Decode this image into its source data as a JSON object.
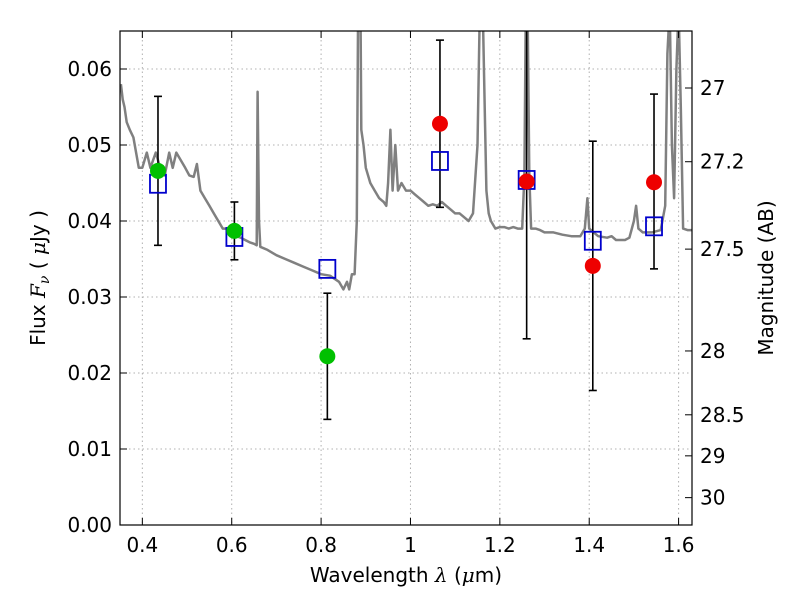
{
  "chart_data": {
    "type": "scatter",
    "title": "",
    "xlabel_text": "Wavelength",
    "xlabel_sym": "λ",
    "xlabel_unit_open": "(",
    "xlabel_unit_mu": "μ",
    "xlabel_unit_rest": "m)",
    "ylabel_text": "Flux",
    "ylabel_sym": "F",
    "ylabel_sub": "ν",
    "ylabel_unit_open": "(",
    "ylabel_unit_mu": "μ",
    "ylabel_unit_rest": "Jy )",
    "y2label": "Magnitude (AB)",
    "xlim": [
      0.35,
      1.63
    ],
    "ylim": [
      0.0,
      0.065
    ],
    "grid": true,
    "x_ticks": [
      {
        "value": 0.4,
        "label": "0.4"
      },
      {
        "value": 0.6,
        "label": "0.6"
      },
      {
        "value": 0.8,
        "label": "0.8"
      },
      {
        "value": 1.0,
        "label": "1"
      },
      {
        "value": 1.2,
        "label": "1.2"
      },
      {
        "value": 1.4,
        "label": "1.4"
      },
      {
        "value": 1.6,
        "label": "1.6"
      }
    ],
    "y_ticks": [
      {
        "value": 0.0,
        "label": "0.00"
      },
      {
        "value": 0.01,
        "label": "0.01"
      },
      {
        "value": 0.02,
        "label": "0.02"
      },
      {
        "value": 0.03,
        "label": "0.03"
      },
      {
        "value": 0.04,
        "label": "0.04"
      },
      {
        "value": 0.05,
        "label": "0.05"
      },
      {
        "value": 0.06,
        "label": "0.06"
      }
    ],
    "y2_ticks": [
      {
        "flux": 0.0575,
        "label": "27"
      },
      {
        "flux": 0.0478,
        "label": "27.2"
      },
      {
        "flux": 0.0363,
        "label": "27.5"
      },
      {
        "flux": 0.0229,
        "label": "28"
      },
      {
        "flux": 0.0145,
        "label": "28.5"
      },
      {
        "flux": 0.0091,
        "label": "29"
      },
      {
        "flux": 0.0036,
        "label": "30"
      }
    ],
    "colors": {
      "spectrum": "#808080",
      "green": "#00c000",
      "red": "#ee0000",
      "model": "#0000cc",
      "errorbar": "#000000",
      "grid": "#b0b0b0"
    },
    "spectrum": [
      [
        0.352,
        0.058
      ],
      [
        0.356,
        0.056
      ],
      [
        0.36,
        0.055
      ],
      [
        0.365,
        0.053
      ],
      [
        0.372,
        0.052
      ],
      [
        0.38,
        0.051
      ],
      [
        0.386,
        0.049
      ],
      [
        0.392,
        0.047
      ],
      [
        0.4,
        0.047
      ],
      [
        0.41,
        0.049
      ],
      [
        0.418,
        0.047
      ],
      [
        0.43,
        0.049
      ],
      [
        0.44,
        0.047
      ],
      [
        0.45,
        0.046
      ],
      [
        0.46,
        0.049
      ],
      [
        0.468,
        0.047
      ],
      [
        0.476,
        0.049
      ],
      [
        0.486,
        0.048
      ],
      [
        0.496,
        0.047
      ],
      [
        0.505,
        0.046
      ],
      [
        0.515,
        0.0458
      ],
      [
        0.522,
        0.0475
      ],
      [
        0.53,
        0.044
      ],
      [
        0.54,
        0.043
      ],
      [
        0.55,
        0.042
      ],
      [
        0.56,
        0.041
      ],
      [
        0.57,
        0.04
      ],
      [
        0.58,
        0.039
      ],
      [
        0.59,
        0.039
      ],
      [
        0.6,
        0.0385
      ],
      [
        0.61,
        0.038
      ],
      [
        0.62,
        0.0378
      ],
      [
        0.63,
        0.0375
      ],
      [
        0.64,
        0.0372
      ],
      [
        0.65,
        0.037
      ],
      [
        0.656,
        0.0368
      ],
      [
        0.658,
        0.057
      ],
      [
        0.661,
        0.04
      ],
      [
        0.664,
        0.0366
      ],
      [
        0.68,
        0.0362
      ],
      [
        0.7,
        0.0355
      ],
      [
        0.72,
        0.035
      ],
      [
        0.74,
        0.0345
      ],
      [
        0.76,
        0.034
      ],
      [
        0.78,
        0.0335
      ],
      [
        0.8,
        0.033
      ],
      [
        0.82,
        0.0328
      ],
      [
        0.84,
        0.032
      ],
      [
        0.85,
        0.031
      ],
      [
        0.858,
        0.032
      ],
      [
        0.863,
        0.031
      ],
      [
        0.869,
        0.033
      ],
      [
        0.875,
        0.033
      ],
      [
        0.88,
        0.04
      ],
      [
        0.883,
        0.07
      ],
      [
        0.888,
        0.07
      ],
      [
        0.89,
        0.052
      ],
      [
        0.895,
        0.05
      ],
      [
        0.9,
        0.047
      ],
      [
        0.91,
        0.045
      ],
      [
        0.92,
        0.044
      ],
      [
        0.93,
        0.043
      ],
      [
        0.94,
        0.0425
      ],
      [
        0.946,
        0.042
      ],
      [
        0.95,
        0.045
      ],
      [
        0.955,
        0.052
      ],
      [
        0.96,
        0.044
      ],
      [
        0.966,
        0.05
      ],
      [
        0.972,
        0.044
      ],
      [
        0.98,
        0.045
      ],
      [
        0.99,
        0.044
      ],
      [
        1.0,
        0.044
      ],
      [
        1.01,
        0.0435
      ],
      [
        1.02,
        0.043
      ],
      [
        1.03,
        0.0425
      ],
      [
        1.04,
        0.042
      ],
      [
        1.05,
        0.0422
      ],
      [
        1.06,
        0.042
      ],
      [
        1.07,
        0.0425
      ],
      [
        1.08,
        0.042
      ],
      [
        1.09,
        0.0415
      ],
      [
        1.1,
        0.041
      ],
      [
        1.11,
        0.041
      ],
      [
        1.12,
        0.0405
      ],
      [
        1.13,
        0.04
      ],
      [
        1.14,
        0.041
      ],
      [
        1.15,
        0.05
      ],
      [
        1.155,
        0.067
      ],
      [
        1.162,
        0.067
      ],
      [
        1.166,
        0.055
      ],
      [
        1.17,
        0.044
      ],
      [
        1.175,
        0.041
      ],
      [
        1.18,
        0.04
      ],
      [
        1.19,
        0.039
      ],
      [
        1.2,
        0.0392
      ],
      [
        1.21,
        0.0392
      ],
      [
        1.22,
        0.039
      ],
      [
        1.23,
        0.0392
      ],
      [
        1.24,
        0.039
      ],
      [
        1.25,
        0.039
      ],
      [
        1.255,
        0.046
      ],
      [
        1.258,
        0.068
      ],
      [
        1.262,
        0.068
      ],
      [
        1.266,
        0.046
      ],
      [
        1.27,
        0.039
      ],
      [
        1.28,
        0.039
      ],
      [
        1.29,
        0.0388
      ],
      [
        1.3,
        0.0385
      ],
      [
        1.32,
        0.0385
      ],
      [
        1.34,
        0.0382
      ],
      [
        1.36,
        0.038
      ],
      [
        1.38,
        0.038
      ],
      [
        1.39,
        0.039
      ],
      [
        1.396,
        0.043
      ],
      [
        1.4,
        0.039
      ],
      [
        1.42,
        0.038
      ],
      [
        1.44,
        0.0378
      ],
      [
        1.45,
        0.038
      ],
      [
        1.46,
        0.0375
      ],
      [
        1.48,
        0.0375
      ],
      [
        1.49,
        0.0378
      ],
      [
        1.5,
        0.04
      ],
      [
        1.505,
        0.042
      ],
      [
        1.51,
        0.039
      ],
      [
        1.52,
        0.0385
      ],
      [
        1.54,
        0.0385
      ],
      [
        1.56,
        0.0388
      ],
      [
        1.57,
        0.042
      ],
      [
        1.575,
        0.062
      ],
      [
        1.58,
        0.068
      ],
      [
        1.585,
        0.05
      ],
      [
        1.59,
        0.043
      ],
      [
        1.595,
        0.06
      ],
      [
        1.6,
        0.068
      ],
      [
        1.605,
        0.055
      ],
      [
        1.61,
        0.039
      ],
      [
        1.62,
        0.0388
      ],
      [
        1.63,
        0.0388
      ]
    ],
    "observed_points": [
      {
        "x": 0.435,
        "y": 0.0466,
        "color": "green"
      },
      {
        "x": 0.606,
        "y": 0.0387,
        "color": "green"
      },
      {
        "x": 0.814,
        "y": 0.0222,
        "color": "green"
      },
      {
        "x": 1.066,
        "y": 0.0528,
        "color": "red"
      },
      {
        "x": 1.26,
        "y": 0.0452,
        "color": "red"
      },
      {
        "x": 1.408,
        "y": 0.0341,
        "color": "red"
      },
      {
        "x": 1.545,
        "y": 0.0451,
        "color": "red"
      }
    ],
    "model_points": [
      {
        "x": 0.435,
        "y": 0.0449
      },
      {
        "x": 0.606,
        "y": 0.0379
      },
      {
        "x": 0.814,
        "y": 0.0337
      },
      {
        "x": 1.066,
        "y": 0.0479
      },
      {
        "x": 1.26,
        "y": 0.0454
      },
      {
        "x": 1.408,
        "y": 0.0374
      },
      {
        "x": 1.545,
        "y": 0.0393
      }
    ],
    "errorbars": [
      {
        "x": 0.435,
        "low": 0.0368,
        "high": 0.0564
      },
      {
        "x": 0.606,
        "low": 0.0349,
        "high": 0.0425
      },
      {
        "x": 0.814,
        "low": 0.0139,
        "high": 0.0305
      },
      {
        "x": 1.066,
        "low": 0.0418,
        "high": 0.0638
      },
      {
        "x": 1.26,
        "low": 0.0245,
        "high": 0.0665
      },
      {
        "x": 1.408,
        "low": 0.0177,
        "high": 0.0505
      },
      {
        "x": 1.545,
        "low": 0.0337,
        "high": 0.0567
      }
    ]
  }
}
